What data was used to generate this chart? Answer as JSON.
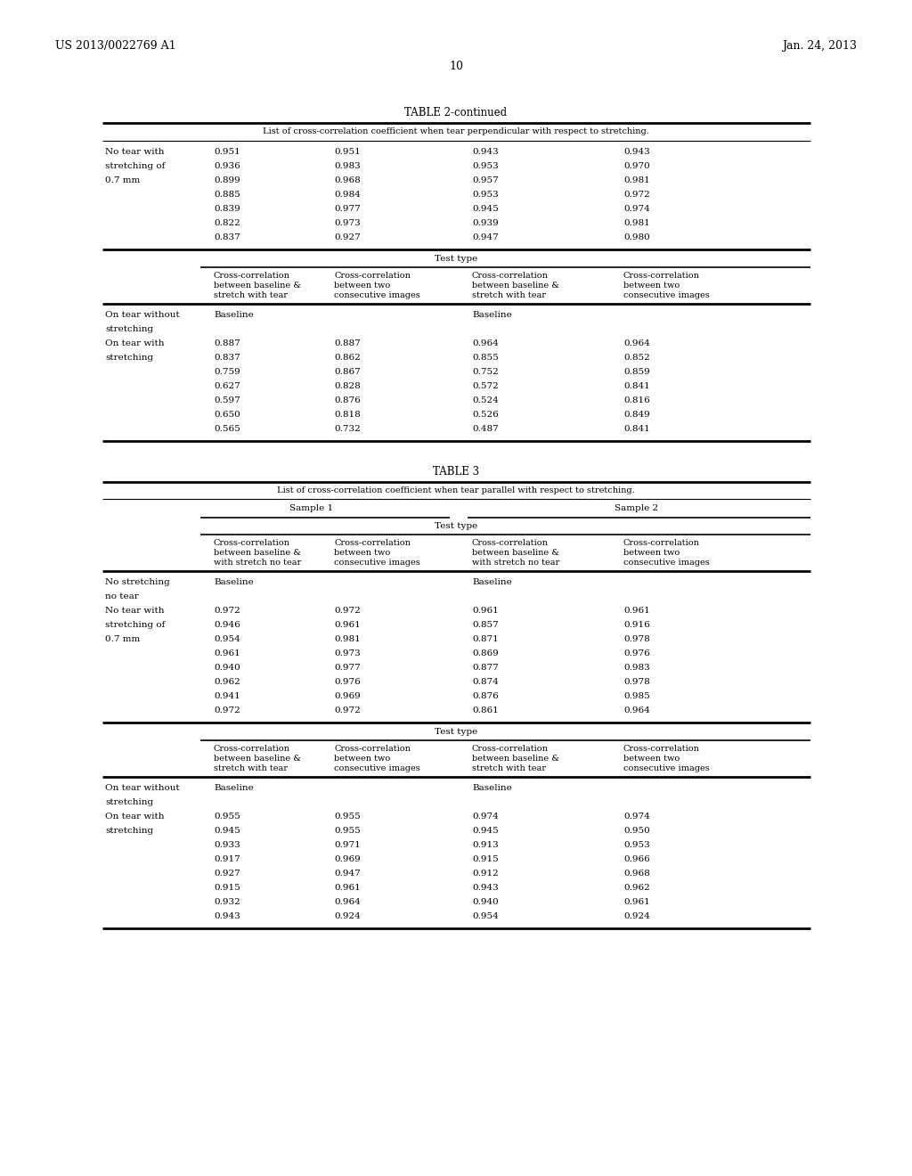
{
  "bg_color": "#ffffff",
  "header_left": "US 2013/0022769 A1",
  "header_right": "Jan. 24, 2013",
  "page_number": "10",
  "table2_continued_title": "TABLE 2-continued",
  "table2_subtitle": "List of cross-correlation coefficient when tear perpendicular with respect to stretching.",
  "table2_upper_rows": [
    [
      "No tear with",
      "0.951",
      "0.951",
      "0.943",
      "0.943"
    ],
    [
      "stretching of",
      "0.936",
      "0.983",
      "0.953",
      "0.970"
    ],
    [
      "0.7 mm",
      "0.899",
      "0.968",
      "0.957",
      "0.981"
    ],
    [
      "",
      "0.885",
      "0.984",
      "0.953",
      "0.972"
    ],
    [
      "",
      "0.839",
      "0.977",
      "0.945",
      "0.974"
    ],
    [
      "",
      "0.822",
      "0.973",
      "0.939",
      "0.981"
    ],
    [
      "",
      "0.837",
      "0.927",
      "0.947",
      "0.980"
    ]
  ],
  "table2_test_type_label": "Test type",
  "table2_col_headers": [
    "Cross-correlation\nbetween baseline &\nstretch with tear",
    "Cross-correlation\nbetween two\nconsecutive images",
    "Cross-correlation\nbetween baseline &\nstretch with tear",
    "Cross-correlation\nbetween two\nconsecutive images"
  ],
  "table2_lower_rows": [
    [
      "On tear without",
      "Baseline",
      "",
      "Baseline",
      ""
    ],
    [
      "stretching",
      "",
      "",
      "",
      ""
    ],
    [
      "On tear with",
      "0.887",
      "0.887",
      "0.964",
      "0.964"
    ],
    [
      "stretching",
      "0.837",
      "0.862",
      "0.855",
      "0.852"
    ],
    [
      "",
      "0.759",
      "0.867",
      "0.752",
      "0.859"
    ],
    [
      "",
      "0.627",
      "0.828",
      "0.572",
      "0.841"
    ],
    [
      "",
      "0.597",
      "0.876",
      "0.524",
      "0.816"
    ],
    [
      "",
      "0.650",
      "0.818",
      "0.526",
      "0.849"
    ],
    [
      "",
      "0.565",
      "0.732",
      "0.487",
      "0.841"
    ]
  ],
  "table3_title": "TABLE 3",
  "table3_subtitle": "List of cross-correlation coefficient when tear parallel with respect to stretching.",
  "table3_sample1": "Sample 1",
  "table3_sample2": "Sample 2",
  "table3_test_type_label": "Test type",
  "table3_col_headers": [
    "Cross-correlation\nbetween baseline &\nwith stretch no tear",
    "Cross-correlation\nbetween two\nconsecutive images",
    "Cross-correlation\nbetween baseline &\nwith stretch no tear",
    "Cross-correlation\nbetween two\nconsecutive images"
  ],
  "table3_upper_rows": [
    [
      "No stretching",
      "Baseline",
      "",
      "Baseline",
      ""
    ],
    [
      "no tear",
      "",
      "",
      "",
      ""
    ],
    [
      "No tear with",
      "0.972",
      "0.972",
      "0.961",
      "0.961"
    ],
    [
      "stretching of",
      "0.946",
      "0.961",
      "0.857",
      "0.916"
    ],
    [
      "0.7 mm",
      "0.954",
      "0.981",
      "0.871",
      "0.978"
    ],
    [
      "",
      "0.961",
      "0.973",
      "0.869",
      "0.976"
    ],
    [
      "",
      "0.940",
      "0.977",
      "0.877",
      "0.983"
    ],
    [
      "",
      "0.962",
      "0.976",
      "0.874",
      "0.978"
    ],
    [
      "",
      "0.941",
      "0.969",
      "0.876",
      "0.985"
    ],
    [
      "",
      "0.972",
      "0.972",
      "0.861",
      "0.964"
    ]
  ],
  "table3_lower_col_headers": [
    "Cross-correlation\nbetween baseline &\nstretch with tear",
    "Cross-correlation\nbetween two\nconsecutive images",
    "Cross-correlation\nbetween baseline &\nstretch with tear",
    "Cross-correlation\nbetween two\nconsecutive images"
  ],
  "table3_lower_rows": [
    [
      "On tear without",
      "Baseline",
      "",
      "Baseline",
      ""
    ],
    [
      "stretching",
      "",
      "",
      "",
      ""
    ],
    [
      "On tear with",
      "0.955",
      "0.955",
      "0.974",
      "0.974"
    ],
    [
      "stretching",
      "0.945",
      "0.955",
      "0.945",
      "0.950"
    ],
    [
      "",
      "0.933",
      "0.971",
      "0.913",
      "0.953"
    ],
    [
      "",
      "0.917",
      "0.969",
      "0.915",
      "0.966"
    ],
    [
      "",
      "0.927",
      "0.947",
      "0.912",
      "0.968"
    ],
    [
      "",
      "0.915",
      "0.961",
      "0.943",
      "0.962"
    ],
    [
      "",
      "0.932",
      "0.964",
      "0.940",
      "0.961"
    ],
    [
      "",
      "0.943",
      "0.924",
      "0.954",
      "0.924"
    ]
  ],
  "font_size": 7.5,
  "font_size_small": 7.0,
  "font_size_title": 8.5
}
